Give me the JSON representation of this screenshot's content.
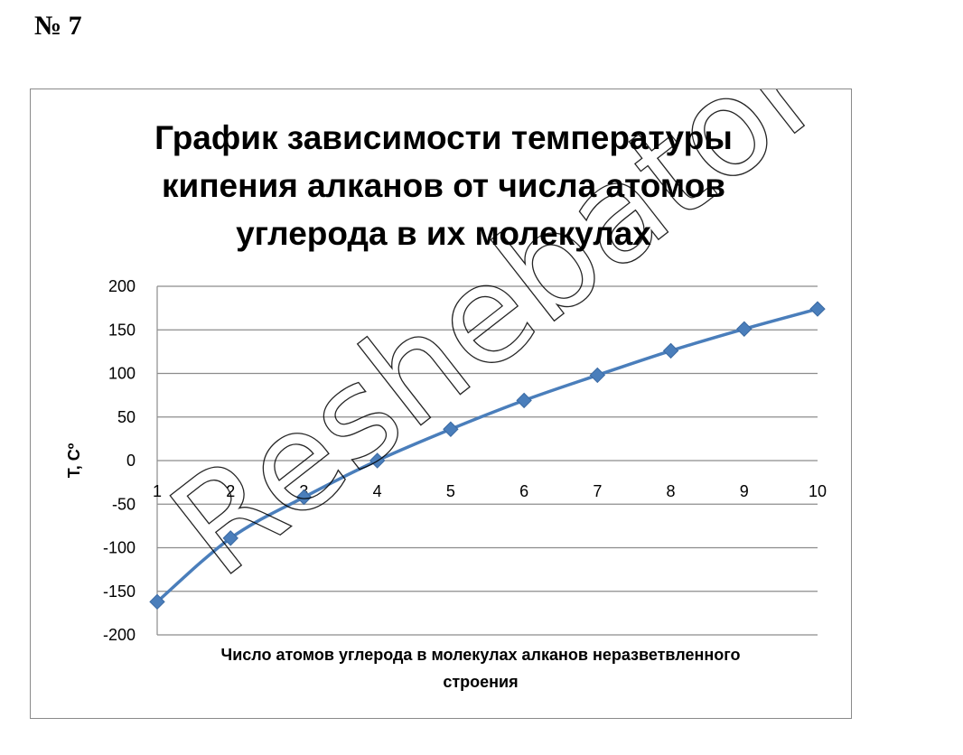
{
  "header": {
    "task_label": "№ 7"
  },
  "watermark": {
    "text": "Reshebator",
    "color": "#000000"
  },
  "chart_data": {
    "type": "line",
    "title_lines": [
      "График зависимости температуры",
      "кипения алканов от числа атомов",
      "углерода в их молекулах"
    ],
    "xlabel_lines": [
      "Число атомов углерода в молекулах алканов неразветвленного",
      "строения"
    ],
    "ylabel": "T, Cº",
    "categories": [
      "1",
      "2",
      "3",
      "4",
      "5",
      "6",
      "7",
      "8",
      "9",
      "10"
    ],
    "x": [
      1,
      2,
      3,
      4,
      5,
      6,
      7,
      8,
      9,
      10
    ],
    "series": [
      {
        "values": [
          -162,
          -89,
          -42,
          0,
          36,
          69,
          98,
          126,
          151,
          174
        ],
        "color": "#4a7ebb",
        "marker": "diamond",
        "smooth": true
      }
    ],
    "ylim": [
      -200,
      200
    ],
    "yticks": [
      200,
      150,
      100,
      50,
      0,
      -50,
      -100,
      -150,
      -200
    ],
    "grid": true,
    "legend": "none"
  }
}
